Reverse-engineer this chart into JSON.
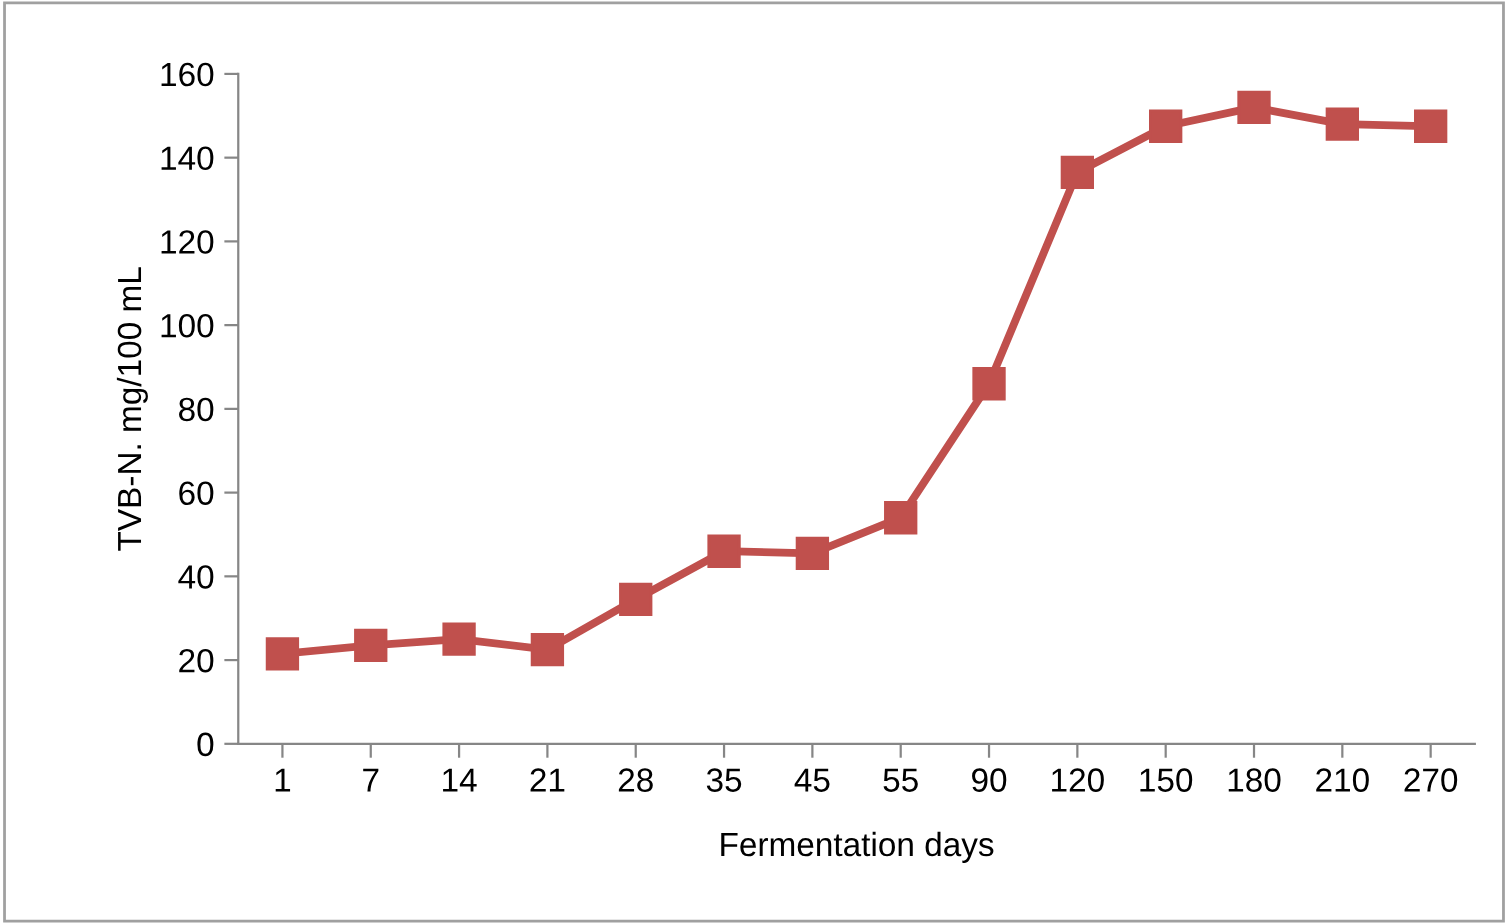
{
  "chart_data": {
    "type": "line",
    "xlabel": "Fermentation days",
    "ylabel": "TVB-N. mg/100 mL",
    "categories": [
      "1",
      "7",
      "14",
      "21",
      "28",
      "35",
      "45",
      "55",
      "90",
      "120",
      "150",
      "180",
      "210",
      "270"
    ],
    "series": [
      {
        "color": "#c0504d",
        "values": [
          21.5,
          23.5,
          25,
          22.5,
          34.5,
          46,
          45.5,
          54,
          86,
          136.5,
          147.5,
          152,
          148,
          147.5
        ]
      }
    ],
    "ylim": [
      0,
      160
    ],
    "yticks": [
      0,
      20,
      40,
      60,
      80,
      100,
      120,
      140,
      160
    ],
    "grid": false,
    "legend": false,
    "marker": "square",
    "line_style": "solid"
  }
}
